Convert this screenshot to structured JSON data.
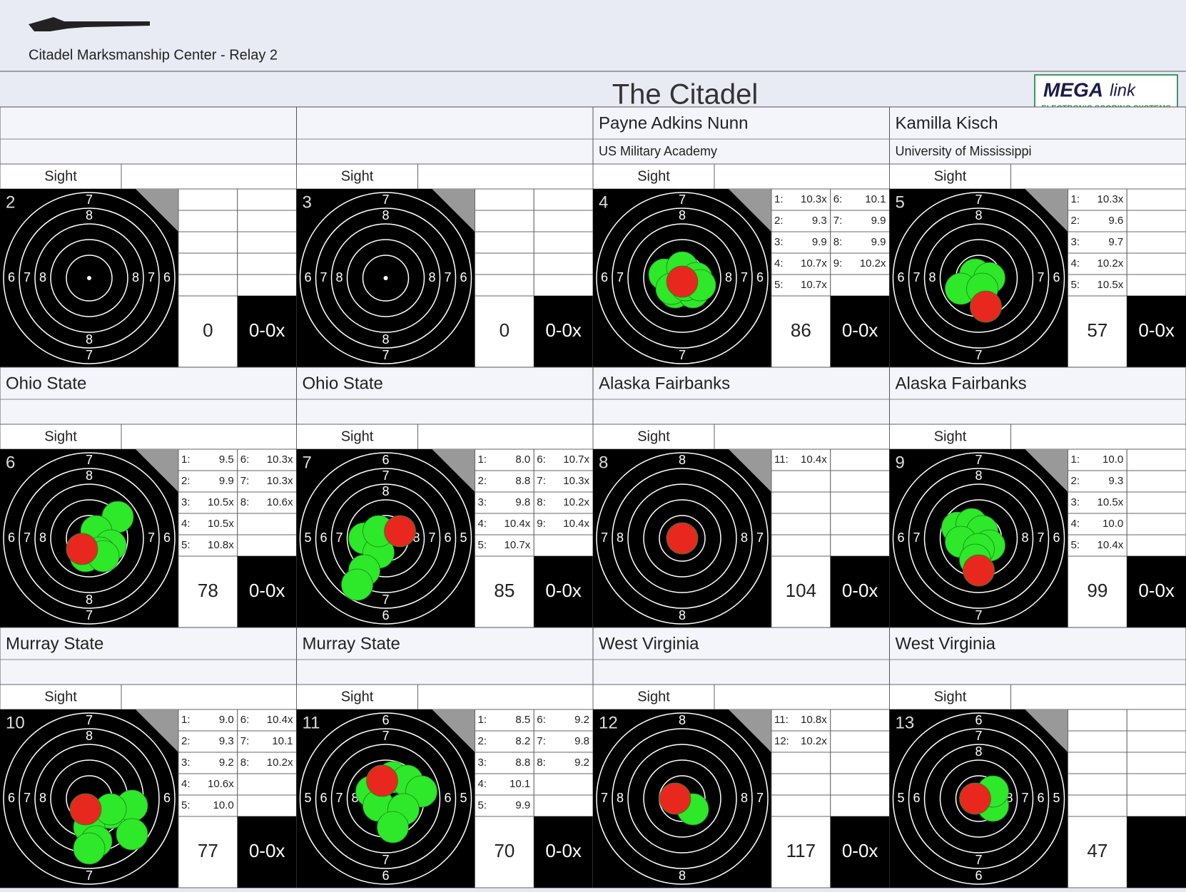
{
  "header": {
    "venue": "Citadel Marksmanship Center - Relay 2",
    "title": "The Citadel",
    "logo": {
      "brand": "MEGA",
      "brand_suffix": "link",
      "tagline": "ELECTRONIC SCORING SYSTEMS"
    }
  },
  "lanes": [
    {
      "lane": "2",
      "sight": "Sight",
      "total": "0",
      "xscore": "0-0x",
      "shots": [],
      "rings": {
        "top": [
          "7",
          "8"
        ],
        "bottom": [
          "7",
          "8"
        ],
        "left": [
          "6",
          "7",
          "8"
        ],
        "right": [
          "6",
          "7",
          "8"
        ]
      }
    },
    {
      "lane": "3",
      "sight": "Sight",
      "total": "0",
      "xscore": "0-0x",
      "shots": [],
      "rings": {
        "top": [
          "7",
          "8"
        ],
        "bottom": [
          "7",
          "8"
        ],
        "left": [
          "6",
          "7",
          "8"
        ],
        "right": [
          "6",
          "7",
          "8"
        ]
      }
    },
    {
      "lane": "4",
      "name": "Payne Adkins Nunn",
      "affiliation": "US Military Academy",
      "sight": "Sight",
      "total": "86",
      "xscore": "0-0x",
      "shots": [
        {
          "label": "1:",
          "score": "10.3x"
        },
        {
          "label": "2:",
          "score": "9.3"
        },
        {
          "label": "3:",
          "score": "9.9"
        },
        {
          "label": "4:",
          "score": "10.7x"
        },
        {
          "label": "5:",
          "score": "10.7x"
        },
        {
          "label": "6:",
          "score": "10.1"
        },
        {
          "label": "7:",
          "score": "9.9"
        },
        {
          "label": "8:",
          "score": "9.9"
        },
        {
          "label": "9:",
          "score": "10.2x"
        }
      ],
      "rings": {
        "top": [
          "7",
          "8"
        ],
        "bottom": [
          "7"
        ],
        "left": [
          "6",
          "7"
        ],
        "right": [
          "6",
          "7",
          "8"
        ]
      }
    },
    {
      "lane": "5",
      "name": "Kamilla Kisch",
      "affiliation": "University of Mississippi",
      "sight": "Sight",
      "total": "57",
      "xscore": "0-0x",
      "shots": [
        {
          "label": "1:",
          "score": "10.3x"
        },
        {
          "label": "2:",
          "score": "9.6"
        },
        {
          "label": "3:",
          "score": "9.7"
        },
        {
          "label": "4:",
          "score": "10.2x"
        },
        {
          "label": "5:",
          "score": "10.5x"
        }
      ],
      "rings": {
        "top": [
          "7",
          "8"
        ],
        "bottom": [
          "7"
        ],
        "left": [
          "6",
          "7",
          "8"
        ],
        "right": [
          "6",
          "7"
        ]
      }
    },
    {
      "lane": "6",
      "name": "Ohio State",
      "sight": "Sight",
      "total": "78",
      "xscore": "0-0x",
      "shots": [
        {
          "label": "1:",
          "score": "9.5"
        },
        {
          "label": "2:",
          "score": "9.9"
        },
        {
          "label": "3:",
          "score": "10.5x"
        },
        {
          "label": "4:",
          "score": "10.5x"
        },
        {
          "label": "5:",
          "score": "10.8x"
        },
        {
          "label": "6:",
          "score": "10.3x"
        },
        {
          "label": "7:",
          "score": "10.3x"
        },
        {
          "label": "8:",
          "score": "10.6x"
        }
      ],
      "rings": {
        "top": [
          "7",
          "8"
        ],
        "bottom": [
          "7",
          "8"
        ],
        "left": [
          "6",
          "7",
          "8"
        ],
        "right": [
          "6",
          "7"
        ]
      }
    },
    {
      "lane": "7",
      "name": "Ohio State",
      "sight": "Sight",
      "total": "85",
      "xscore": "0-0x",
      "shots": [
        {
          "label": "1:",
          "score": "8.0"
        },
        {
          "label": "2:",
          "score": "8.8"
        },
        {
          "label": "3:",
          "score": "9.8"
        },
        {
          "label": "4:",
          "score": "10.4x"
        },
        {
          "label": "5:",
          "score": "10.7x"
        },
        {
          "label": "6:",
          "score": "10.7x"
        },
        {
          "label": "7:",
          "score": "10.3x"
        },
        {
          "label": "8:",
          "score": "10.2x"
        },
        {
          "label": "9:",
          "score": "10.4x"
        }
      ],
      "rings": {
        "top": [
          "6",
          "7",
          "8"
        ],
        "bottom": [
          "6",
          "7"
        ],
        "left": [
          "5",
          "6",
          "7"
        ],
        "right": [
          "5",
          "6",
          "7",
          "8"
        ]
      }
    },
    {
      "lane": "8",
      "name": "Alaska Fairbanks",
      "sight": "Sight",
      "total": "104",
      "xscore": "0-0x",
      "shots": [
        {
          "label": "11:",
          "score": "10.4x"
        }
      ],
      "rings": {
        "top": [
          "8"
        ],
        "bottom": [
          "8"
        ],
        "left": [
          "7",
          "8"
        ],
        "right": [
          "7",
          "8"
        ]
      }
    },
    {
      "lane": "9",
      "name": "Alaska Fairbanks",
      "sight": "Sight",
      "total": "99",
      "xscore": "0-0x",
      "shots": [
        {
          "label": "1:",
          "score": "10.0"
        },
        {
          "label": "2:",
          "score": "9.3"
        },
        {
          "label": "3:",
          "score": "10.5x"
        },
        {
          "label": "4:",
          "score": "10.0"
        },
        {
          "label": "5:",
          "score": "10.4x"
        }
      ],
      "rings": {
        "top": [
          "7",
          "8"
        ],
        "bottom": [
          "7"
        ],
        "left": [
          "6",
          "7"
        ],
        "right": [
          "6",
          "7",
          "8"
        ]
      }
    },
    {
      "lane": "10",
      "name": "Murray State",
      "sight": "Sight",
      "total": "77",
      "xscore": "0-0x",
      "shots": [
        {
          "label": "1:",
          "score": "9.0"
        },
        {
          "label": "2:",
          "score": "9.3"
        },
        {
          "label": "3:",
          "score": "9.2"
        },
        {
          "label": "4:",
          "score": "10.6x"
        },
        {
          "label": "5:",
          "score": "10.0"
        },
        {
          "label": "6:",
          "score": "10.4x"
        },
        {
          "label": "7:",
          "score": "10.1"
        },
        {
          "label": "8:",
          "score": "10.2x"
        }
      ],
      "rings": {
        "top": [
          "7",
          "8"
        ],
        "bottom": [
          "7"
        ],
        "left": [
          "6",
          "7",
          "8"
        ],
        "right": [
          "6"
        ]
      }
    },
    {
      "lane": "11",
      "name": "Murray State",
      "sight": "Sight",
      "total": "70",
      "xscore": "0-0x",
      "shots": [
        {
          "label": "1:",
          "score": "8.5"
        },
        {
          "label": "2:",
          "score": "8.2"
        },
        {
          "label": "3:",
          "score": "8.8"
        },
        {
          "label": "4:",
          "score": "10.1"
        },
        {
          "label": "5:",
          "score": "9.9"
        },
        {
          "label": "6:",
          "score": "9.2"
        },
        {
          "label": "7:",
          "score": "9.8"
        },
        {
          "label": "8:",
          "score": "9.2"
        }
      ],
      "rings": {
        "top": [
          "6",
          "7"
        ],
        "bottom": [
          "6",
          "7"
        ],
        "left": [
          "5",
          "6",
          "7",
          "8"
        ],
        "right": [
          "5",
          "6",
          "7",
          "8"
        ]
      }
    },
    {
      "lane": "12",
      "name": "West Virginia",
      "sight": "Sight",
      "total": "117",
      "xscore": "0-0x",
      "shots": [
        {
          "label": "11:",
          "score": "10.8x"
        },
        {
          "label": "12:",
          "score": "10.2x"
        }
      ],
      "rings": {
        "top": [
          "8"
        ],
        "bottom": [
          "8"
        ],
        "left": [
          "7",
          "8"
        ],
        "right": [
          "7",
          "8"
        ]
      }
    },
    {
      "lane": "13",
      "name": "West Virginia",
      "sight": "Sight",
      "total": "47",
      "shots": [],
      "rings": {
        "top": [
          "6",
          "7",
          "8"
        ],
        "bottom": [
          "6",
          "7"
        ],
        "left": [
          "5",
          "6"
        ],
        "right": [
          "5",
          "6",
          "7",
          "8"
        ]
      }
    }
  ]
}
